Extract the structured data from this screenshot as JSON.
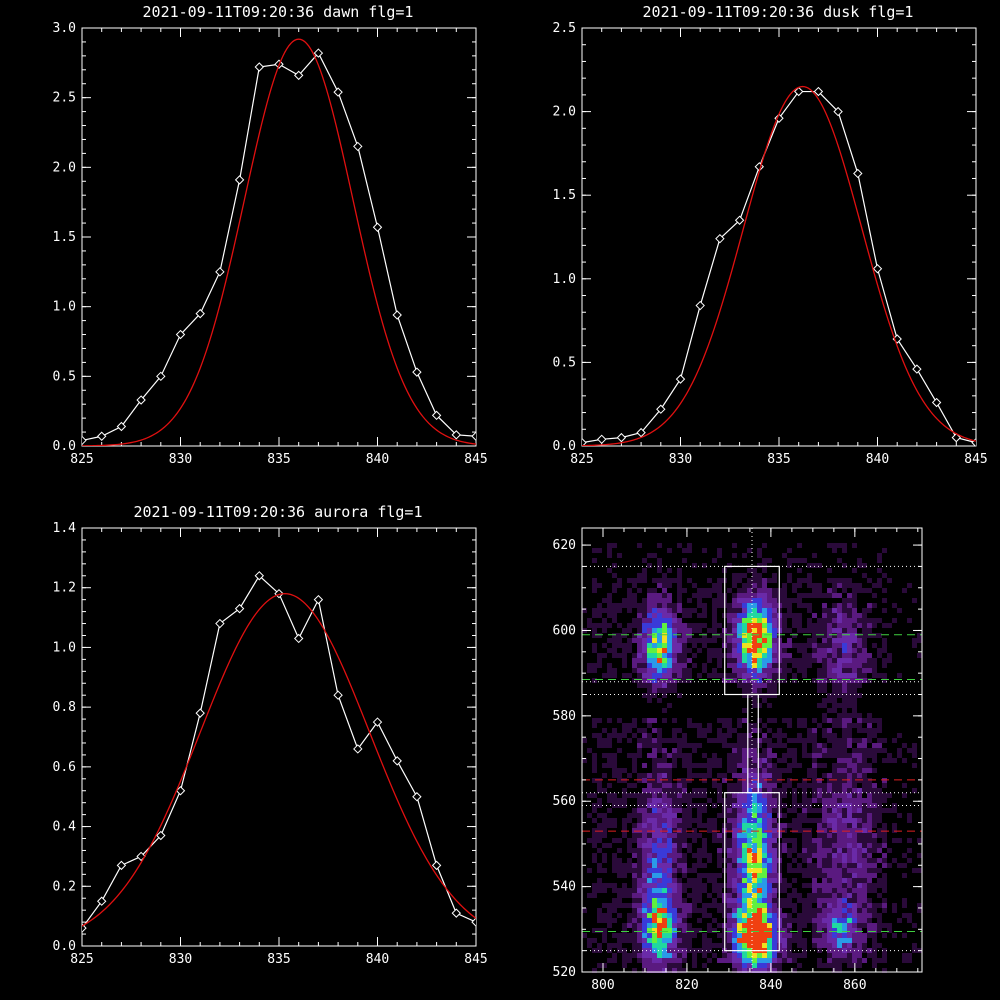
{
  "chart_data": [
    {
      "type": "line",
      "title": "2021-09-11T09:20:36 dawn flg=1",
      "xlim": [
        825,
        845
      ],
      "ylim": [
        0,
        3.0
      ],
      "xticks": [
        825,
        830,
        835,
        840,
        845
      ],
      "yticks": [
        0.0,
        0.5,
        1.0,
        1.5,
        2.0,
        2.5,
        3.0
      ],
      "ytick_labels": [
        "0.0",
        "0.5",
        "1.0",
        "1.5",
        "2.0",
        "2.5",
        "3.0"
      ],
      "series": [
        {
          "color": "#ffffff",
          "marker": "diamond",
          "x": [
            825,
            826,
            827,
            828,
            829,
            830,
            831,
            832,
            833,
            834,
            835,
            836,
            837,
            838,
            839,
            840,
            841,
            842,
            843,
            844,
            845
          ],
          "y": [
            0.04,
            0.07,
            0.14,
            0.33,
            0.5,
            0.8,
            0.95,
            1.25,
            1.91,
            2.72,
            2.74,
            2.66,
            2.82,
            2.54,
            2.15,
            1.57,
            0.94,
            0.53,
            0.22,
            0.08,
            0.07
          ]
        },
        {
          "color": "#e01010",
          "fit": "gaussian",
          "amplitude": 2.92,
          "center": 836.0,
          "sigma": 2.75,
          "offset": 0.0
        }
      ]
    },
    {
      "type": "line",
      "title": "2021-09-11T09:20:36 dusk flg=1",
      "xlim": [
        825,
        845
      ],
      "ylim": [
        0,
        2.5
      ],
      "xticks": [
        825,
        830,
        835,
        840,
        845
      ],
      "yticks": [
        0.0,
        0.5,
        1.0,
        1.5,
        2.0,
        2.5
      ],
      "ytick_labels": [
        "0.0",
        "0.5",
        "1.0",
        "1.5",
        "2.0",
        "2.5"
      ],
      "series": [
        {
          "color": "#ffffff",
          "marker": "diamond",
          "x": [
            825,
            826,
            827,
            828,
            829,
            830,
            831,
            832,
            833,
            834,
            835,
            836,
            837,
            838,
            839,
            840,
            841,
            842,
            843,
            844,
            845
          ],
          "y": [
            0.02,
            0.04,
            0.05,
            0.08,
            0.22,
            0.4,
            0.84,
            1.24,
            1.35,
            1.67,
            1.96,
            2.12,
            2.12,
            2.0,
            1.63,
            1.06,
            0.64,
            0.46,
            0.26,
            0.05,
            0.02
          ]
        },
        {
          "color": "#e01010",
          "fit": "gaussian",
          "amplitude": 2.15,
          "center": 836.2,
          "sigma": 3.0,
          "offset": 0.0
        }
      ]
    },
    {
      "type": "line",
      "title": "2021-09-11T09:20:36 aurora flg=1",
      "xlim": [
        825,
        845
      ],
      "ylim": [
        0,
        1.4
      ],
      "xticks": [
        825,
        830,
        835,
        840,
        845
      ],
      "yticks": [
        0.0,
        0.2,
        0.4,
        0.6,
        0.8,
        1.0,
        1.2,
        1.4
      ],
      "ytick_labels": [
        "0.0",
        "0.2",
        "0.4",
        "0.6",
        "0.8",
        "1.0",
        "1.2",
        "1.4"
      ],
      "series": [
        {
          "color": "#ffffff",
          "marker": "diamond",
          "x": [
            825,
            826,
            827,
            828,
            829,
            830,
            831,
            832,
            833,
            834,
            835,
            836,
            837,
            838,
            839,
            840,
            841,
            842,
            843,
            844,
            845
          ],
          "y": [
            0.06,
            0.15,
            0.27,
            0.3,
            0.37,
            0.52,
            0.78,
            1.08,
            1.13,
            1.24,
            1.18,
            1.03,
            1.16,
            0.84,
            0.66,
            0.75,
            0.62,
            0.5,
            0.27,
            0.11,
            0.08
          ]
        },
        {
          "color": "#e01010",
          "fit": "gaussian",
          "amplitude": 1.18,
          "center": 835.3,
          "sigma": 4.3,
          "offset": 0.0
        }
      ]
    },
    {
      "type": "heatmap",
      "title": "",
      "xlim": [
        795,
        876
      ],
      "ylim": [
        520,
        624
      ],
      "xticks": [
        800,
        820,
        840,
        860
      ],
      "yticks": [
        520,
        540,
        560,
        580,
        600,
        620
      ],
      "colormap": [
        "#000000",
        "#2a0a3a",
        "#5a1a80",
        "#6a2aa8",
        "#3a3ad8",
        "#2a9ae8",
        "#20d8a0",
        "#60f040",
        "#f0e020",
        "#f04010"
      ],
      "sources": [
        {
          "x": 836.5,
          "y": 598,
          "sx": 3.0,
          "sy": 6,
          "amp": 0.95
        },
        {
          "x": 836.5,
          "y": 528,
          "sx": 3.2,
          "sy": 4,
          "amp": 1.0
        },
        {
          "x": 836.0,
          "y": 545,
          "sx": 3.0,
          "sy": 14,
          "amp": 0.7
        },
        {
          "x": 813.5,
          "y": 596,
          "sx": 2.8,
          "sy": 6,
          "amp": 0.65
        },
        {
          "x": 813.5,
          "y": 530,
          "sx": 2.8,
          "sy": 5,
          "amp": 0.6
        },
        {
          "x": 813.5,
          "y": 545,
          "sx": 3.0,
          "sy": 14,
          "amp": 0.35
        },
        {
          "x": 857.0,
          "y": 530,
          "sx": 2.5,
          "sy": 4,
          "amp": 0.4
        },
        {
          "x": 857.0,
          "y": 595,
          "sx": 3.5,
          "sy": 8,
          "amp": 0.22
        },
        {
          "x": 858.0,
          "y": 550,
          "sx": 5.0,
          "sy": 16,
          "amp": 0.18
        }
      ],
      "boxes": [
        {
          "x0": 829,
          "x1": 842,
          "y0": 585,
          "y1": 615,
          "color": "#ffffff"
        },
        {
          "x0": 829,
          "x1": 842,
          "y0": 525,
          "y1": 562,
          "color": "#ffffff"
        },
        {
          "x0": 834.5,
          "x1": 837.0,
          "y0": 562,
          "y1": 585,
          "color": "#ffffff"
        }
      ],
      "hlines": [
        {
          "y": 615,
          "color": "#ffffff",
          "style": "dotted"
        },
        {
          "y": 599,
          "color": "#40d040",
          "style": "dashed"
        },
        {
          "y": 588.5,
          "color": "#40d040",
          "style": "dashed"
        },
        {
          "y": 588,
          "color": "#ffffff",
          "style": "dotted"
        },
        {
          "y": 585,
          "color": "#ffffff",
          "style": "dotted"
        },
        {
          "y": 565,
          "color": "#e02020",
          "style": "dashed"
        },
        {
          "y": 562,
          "color": "#ffffff",
          "style": "dotted"
        },
        {
          "y": 559,
          "color": "#ffffff",
          "style": "dotted"
        },
        {
          "y": 553,
          "color": "#e02020",
          "style": "dashed"
        },
        {
          "y": 529.5,
          "color": "#40d040",
          "style": "dashed"
        },
        {
          "y": 525,
          "color": "#ffffff",
          "style": "dotted"
        }
      ],
      "vlines": [
        {
          "x": 835.5,
          "color": "#ffffff",
          "style": "dotted"
        }
      ]
    }
  ]
}
